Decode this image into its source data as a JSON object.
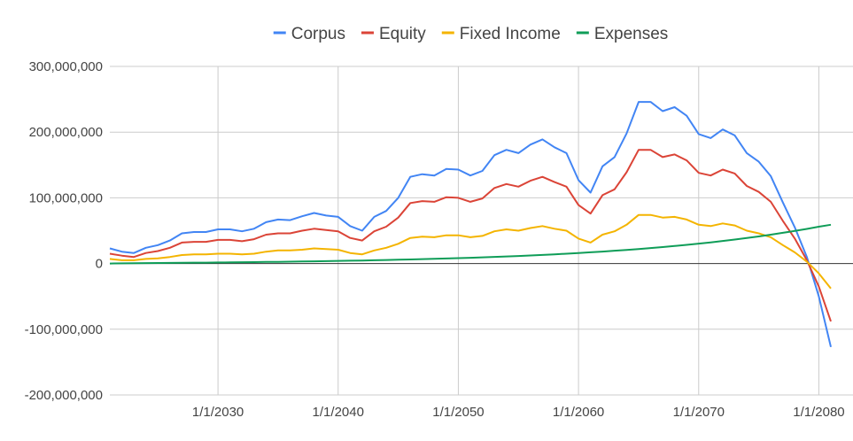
{
  "chart_data": {
    "type": "line",
    "xlabel": "",
    "ylabel": "",
    "xlim": [
      "2021-01-01",
      "2080-12-31"
    ],
    "ylim": [
      -200000000,
      300000000
    ],
    "grid": true,
    "legend_position": "top",
    "x_ticks": [
      "1/1/2030",
      "1/1/2040",
      "1/1/2050",
      "1/1/2060",
      "1/1/2070",
      "1/1/2080"
    ],
    "y_ticks": [
      "300,000,000",
      "200,000,000",
      "100,000,000",
      "0",
      "-100,000,000",
      "-200,000,000"
    ],
    "years": [
      2021,
      2022,
      2023,
      2024,
      2025,
      2026,
      2027,
      2028,
      2029,
      2030,
      2031,
      2032,
      2033,
      2034,
      2035,
      2036,
      2037,
      2038,
      2039,
      2040,
      2041,
      2042,
      2043,
      2044,
      2045,
      2046,
      2047,
      2048,
      2049,
      2050,
      2051,
      2052,
      2053,
      2054,
      2055,
      2056,
      2057,
      2058,
      2059,
      2060,
      2061,
      2062,
      2063,
      2064,
      2065,
      2066,
      2067,
      2068,
      2069,
      2070,
      2071,
      2072,
      2073,
      2074,
      2075,
      2076,
      2077,
      2078,
      2079,
      2080,
      2081
    ],
    "series": [
      {
        "name": "Corpus",
        "color": "#4285f4",
        "values": [
          23000000,
          18000000,
          16000000,
          24000000,
          28000000,
          35000000,
          46000000,
          48000000,
          48000000,
          52000000,
          52000000,
          49000000,
          53000000,
          63000000,
          67000000,
          66000000,
          72000000,
          77000000,
          73000000,
          71000000,
          57000000,
          50000000,
          71000000,
          80000000,
          100000000,
          132000000,
          136000000,
          134000000,
          144000000,
          143000000,
          134000000,
          141000000,
          165000000,
          173000000,
          168000000,
          181000000,
          189000000,
          177000000,
          168000000,
          127000000,
          108000000,
          148000000,
          162000000,
          198000000,
          246000000,
          246000000,
          232000000,
          238000000,
          225000000,
          197000000,
          191000000,
          204000000,
          195000000,
          168000000,
          155000000,
          133000000,
          93000000,
          55000000,
          10000000,
          -50000000,
          -127000000
        ]
      },
      {
        "name": "Equity",
        "color": "#db4437",
        "values": [
          15000000,
          12000000,
          10000000,
          16000000,
          19000000,
          24000000,
          32000000,
          33000000,
          33000000,
          36000000,
          36000000,
          34000000,
          37000000,
          44000000,
          46000000,
          46000000,
          50000000,
          53000000,
          51000000,
          49000000,
          39000000,
          35000000,
          49000000,
          56000000,
          70000000,
          92000000,
          95000000,
          94000000,
          101000000,
          100000000,
          94000000,
          99000000,
          115000000,
          121000000,
          117000000,
          126000000,
          132000000,
          124000000,
          117000000,
          89000000,
          76000000,
          104000000,
          113000000,
          139000000,
          173000000,
          173000000,
          162000000,
          166000000,
          157000000,
          138000000,
          134000000,
          143000000,
          137000000,
          118000000,
          109000000,
          94000000,
          65000000,
          38000000,
          5000000,
          -35000000,
          -88000000
        ]
      },
      {
        "name": "Fixed Income",
        "color": "#f4b400",
        "values": [
          7000000,
          5000000,
          5000000,
          7000000,
          8000000,
          10000000,
          13000000,
          14000000,
          14000000,
          15000000,
          15000000,
          14000000,
          15000000,
          18000000,
          20000000,
          20000000,
          21000000,
          23000000,
          22000000,
          21000000,
          16000000,
          14000000,
          20000000,
          24000000,
          30000000,
          39000000,
          41000000,
          40000000,
          43000000,
          43000000,
          40000000,
          42000000,
          49000000,
          52000000,
          50000000,
          54000000,
          57000000,
          53000000,
          50000000,
          38000000,
          32000000,
          44000000,
          49000000,
          59000000,
          74000000,
          74000000,
          70000000,
          71000000,
          67000000,
          59000000,
          57000000,
          61000000,
          58000000,
          50000000,
          46000000,
          40000000,
          28000000,
          17000000,
          3000000,
          -15000000,
          -38000000
        ]
      },
      {
        "name": "Expenses",
        "color": "#0f9d58",
        "values": [
          0,
          300000,
          500000,
          700000,
          800000,
          1000000,
          1100000,
          1300000,
          1400000,
          1600000,
          1800000,
          2000000,
          2200000,
          2400000,
          2600000,
          2800000,
          3100000,
          3400000,
          3700000,
          4000000,
          4300000,
          4600000,
          5000000,
          5400000,
          5800000,
          6200000,
          6700000,
          7200000,
          7700000,
          8200000,
          8800000,
          9400000,
          10100000,
          10800000,
          11500000,
          12300000,
          13100000,
          14000000,
          15000000,
          16000000,
          17100000,
          18200000,
          19500000,
          20800000,
          22100000,
          23600000,
          25100000,
          26700000,
          28400000,
          30300000,
          32200000,
          34300000,
          36500000,
          38800000,
          41300000,
          43900000,
          46700000,
          49600000,
          52700000,
          56000000,
          59000000
        ]
      }
    ]
  }
}
